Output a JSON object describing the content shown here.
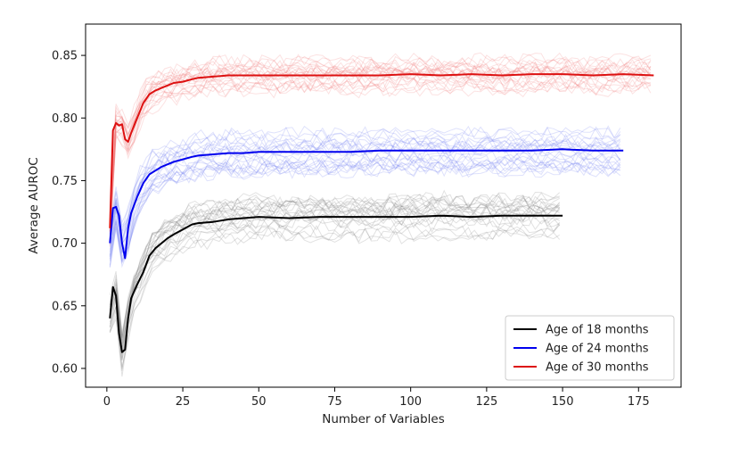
{
  "chart_data": {
    "type": "line",
    "title": "",
    "xlabel": "Number of Variables",
    "ylabel": "Average AUROC",
    "xlim": [
      -7,
      189
    ],
    "ylim": [
      0.585,
      0.875
    ],
    "xticks": [
      0,
      25,
      50,
      75,
      100,
      125,
      150,
      175
    ],
    "yticks": [
      0.6,
      0.65,
      0.7,
      0.75,
      0.8,
      0.85
    ],
    "ytick_labels": [
      "0.60",
      "0.65",
      "0.70",
      "0.75",
      "0.80",
      "0.85"
    ],
    "grid": false,
    "legend_position": "lower right",
    "series": [
      {
        "name": "Age of 18 months",
        "color": "#000000",
        "band_color": "#7a7a7a",
        "x": [
          1,
          2,
          3,
          4,
          5,
          6,
          7,
          8,
          10,
          12,
          14,
          16,
          18,
          20,
          22,
          25,
          28,
          30,
          35,
          40,
          45,
          50,
          60,
          70,
          80,
          90,
          100,
          110,
          120,
          130,
          140,
          150
        ],
        "y": [
          0.64,
          0.665,
          0.658,
          0.628,
          0.613,
          0.615,
          0.64,
          0.656,
          0.667,
          0.677,
          0.69,
          0.696,
          0.7,
          0.704,
          0.707,
          0.711,
          0.715,
          0.716,
          0.717,
          0.719,
          0.72,
          0.721,
          0.72,
          0.721,
          0.721,
          0.721,
          0.721,
          0.722,
          0.721,
          0.722,
          0.722,
          0.722
        ]
      },
      {
        "name": "Age of 24 months",
        "color": "#0000ee",
        "band_color": "#6f7cf0",
        "x": [
          1,
          2,
          3,
          4,
          5,
          6,
          7,
          8,
          10,
          12,
          14,
          16,
          18,
          20,
          22,
          25,
          28,
          30,
          35,
          40,
          45,
          50,
          60,
          70,
          80,
          90,
          100,
          110,
          120,
          130,
          140,
          150,
          160,
          170
        ],
        "y": [
          0.7,
          0.728,
          0.729,
          0.722,
          0.7,
          0.688,
          0.712,
          0.724,
          0.737,
          0.748,
          0.755,
          0.758,
          0.761,
          0.763,
          0.765,
          0.767,
          0.769,
          0.77,
          0.771,
          0.772,
          0.772,
          0.773,
          0.773,
          0.773,
          0.773,
          0.774,
          0.774,
          0.774,
          0.774,
          0.774,
          0.774,
          0.775,
          0.774,
          0.774
        ]
      },
      {
        "name": "Age of 30 months",
        "color": "#dd1111",
        "band_color": "#f07a7a",
        "x": [
          1,
          2,
          3,
          4,
          5,
          6,
          7,
          8,
          10,
          12,
          14,
          16,
          18,
          20,
          22,
          25,
          28,
          30,
          35,
          40,
          45,
          50,
          60,
          70,
          80,
          90,
          100,
          110,
          120,
          130,
          140,
          150,
          160,
          170,
          180
        ],
        "y": [
          0.712,
          0.79,
          0.796,
          0.794,
          0.795,
          0.783,
          0.781,
          0.788,
          0.8,
          0.812,
          0.819,
          0.822,
          0.824,
          0.826,
          0.828,
          0.829,
          0.831,
          0.832,
          0.833,
          0.834,
          0.834,
          0.834,
          0.834,
          0.834,
          0.834,
          0.834,
          0.835,
          0.834,
          0.835,
          0.834,
          0.835,
          0.835,
          0.834,
          0.835,
          0.834
        ]
      }
    ]
  }
}
